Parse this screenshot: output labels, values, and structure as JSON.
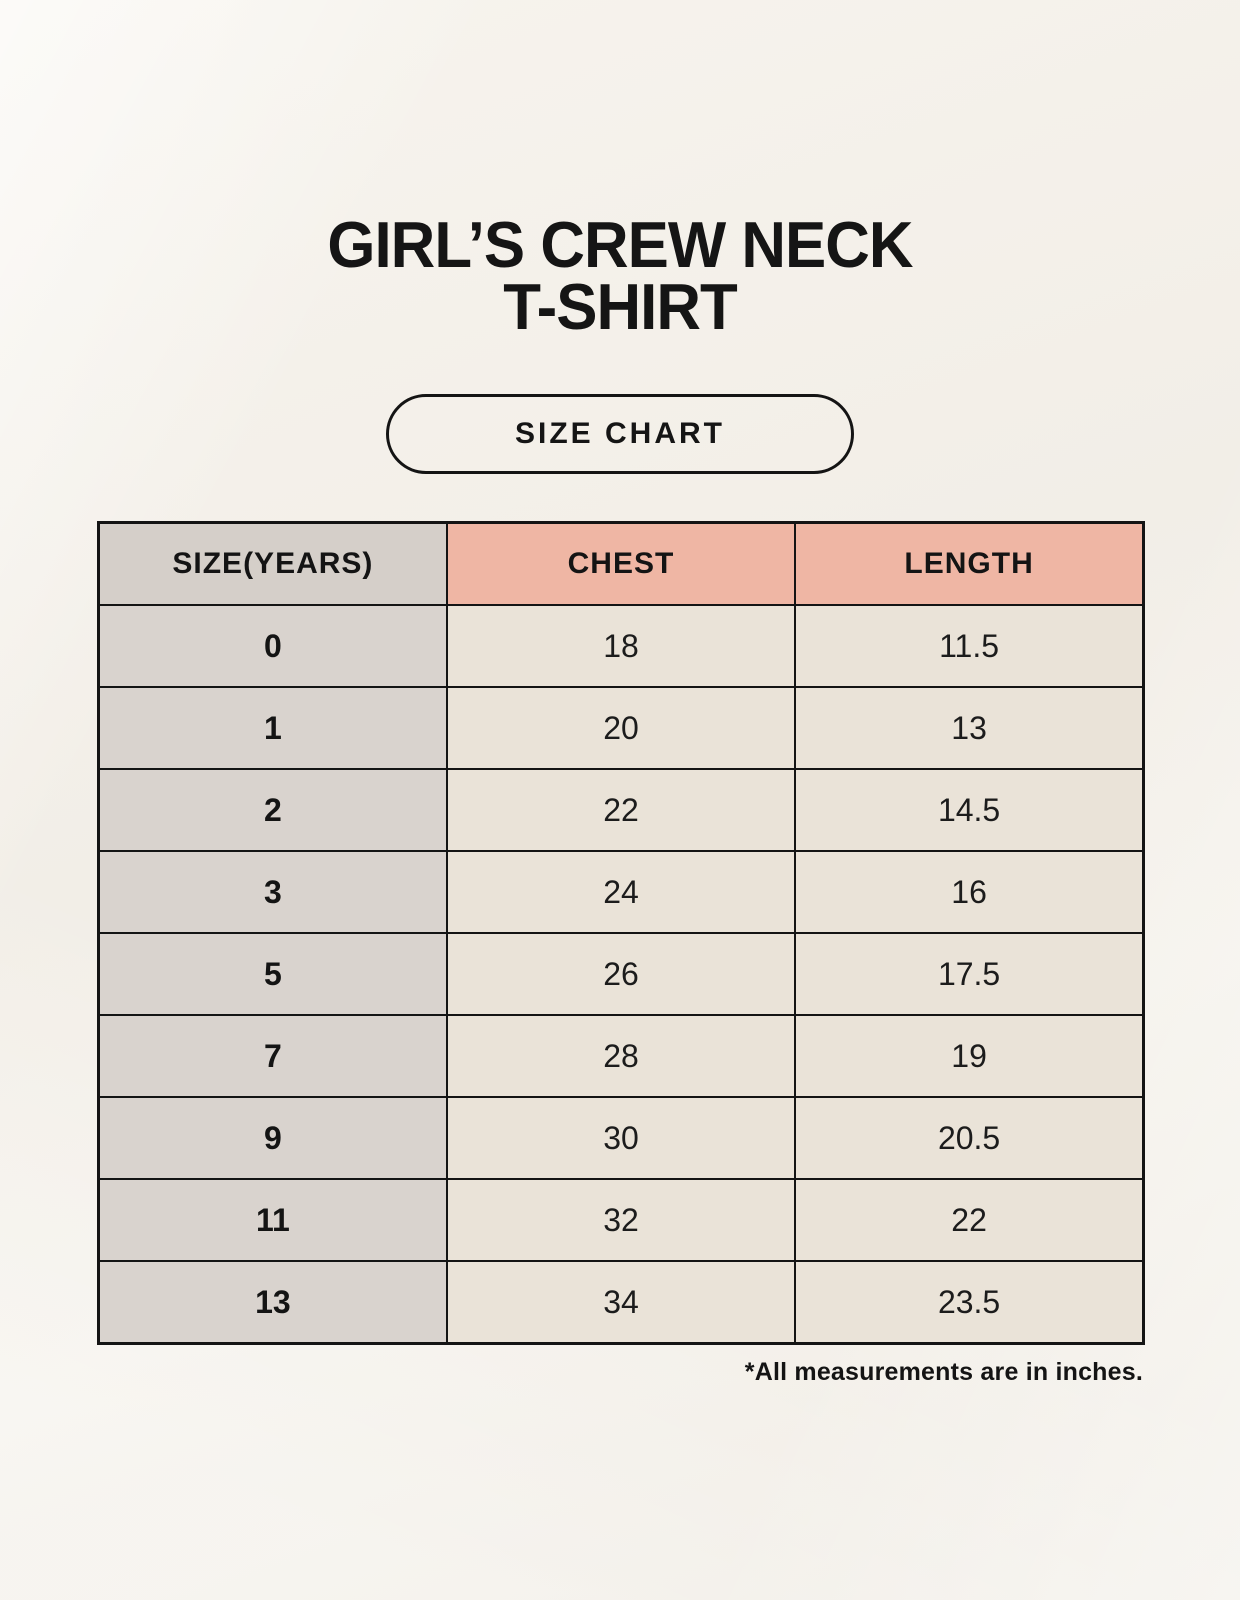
{
  "page": {
    "title_line1": "GIRL’S CREW NECK",
    "title_line2": "T-SHIRT",
    "badge_label": "SIZE CHART",
    "footnote": "*All measurements are in inches."
  },
  "colors": {
    "background": "#f4f1ea",
    "header_size_bg": "#d5cfc9",
    "header_accent_bg": "#efb6a4",
    "size_column_bg": "#d9d3ce",
    "value_cell_bg": "#eae3d8",
    "border": "#141414",
    "text": "#151515"
  },
  "table": {
    "headers": [
      "SIZE(YEARS)",
      "CHEST",
      "LENGTH"
    ],
    "rows": [
      [
        "0",
        "18",
        "11.5"
      ],
      [
        "1",
        "20",
        "13"
      ],
      [
        "2",
        "22",
        "14.5"
      ],
      [
        "3",
        "24",
        "16"
      ],
      [
        "5",
        "26",
        "17.5"
      ],
      [
        "7",
        "28",
        "19"
      ],
      [
        "9",
        "30",
        "20.5"
      ],
      [
        "11",
        "32",
        "22"
      ],
      [
        "13",
        "34",
        "23.5"
      ]
    ]
  },
  "chart_data": {
    "type": "table",
    "title": "GIRL’S CREW NECK T-SHIRT — SIZE CHART",
    "columns": [
      "SIZE(YEARS)",
      "CHEST",
      "LENGTH"
    ],
    "units": "inches",
    "rows": [
      [
        0,
        18,
        11.5
      ],
      [
        1,
        20,
        13
      ],
      [
        2,
        22,
        14.5
      ],
      [
        3,
        24,
        16
      ],
      [
        5,
        26,
        17.5
      ],
      [
        7,
        28,
        19
      ],
      [
        9,
        30,
        20.5
      ],
      [
        11,
        32,
        22
      ],
      [
        13,
        34,
        23.5
      ]
    ],
    "note": "*All measurements are in inches."
  }
}
